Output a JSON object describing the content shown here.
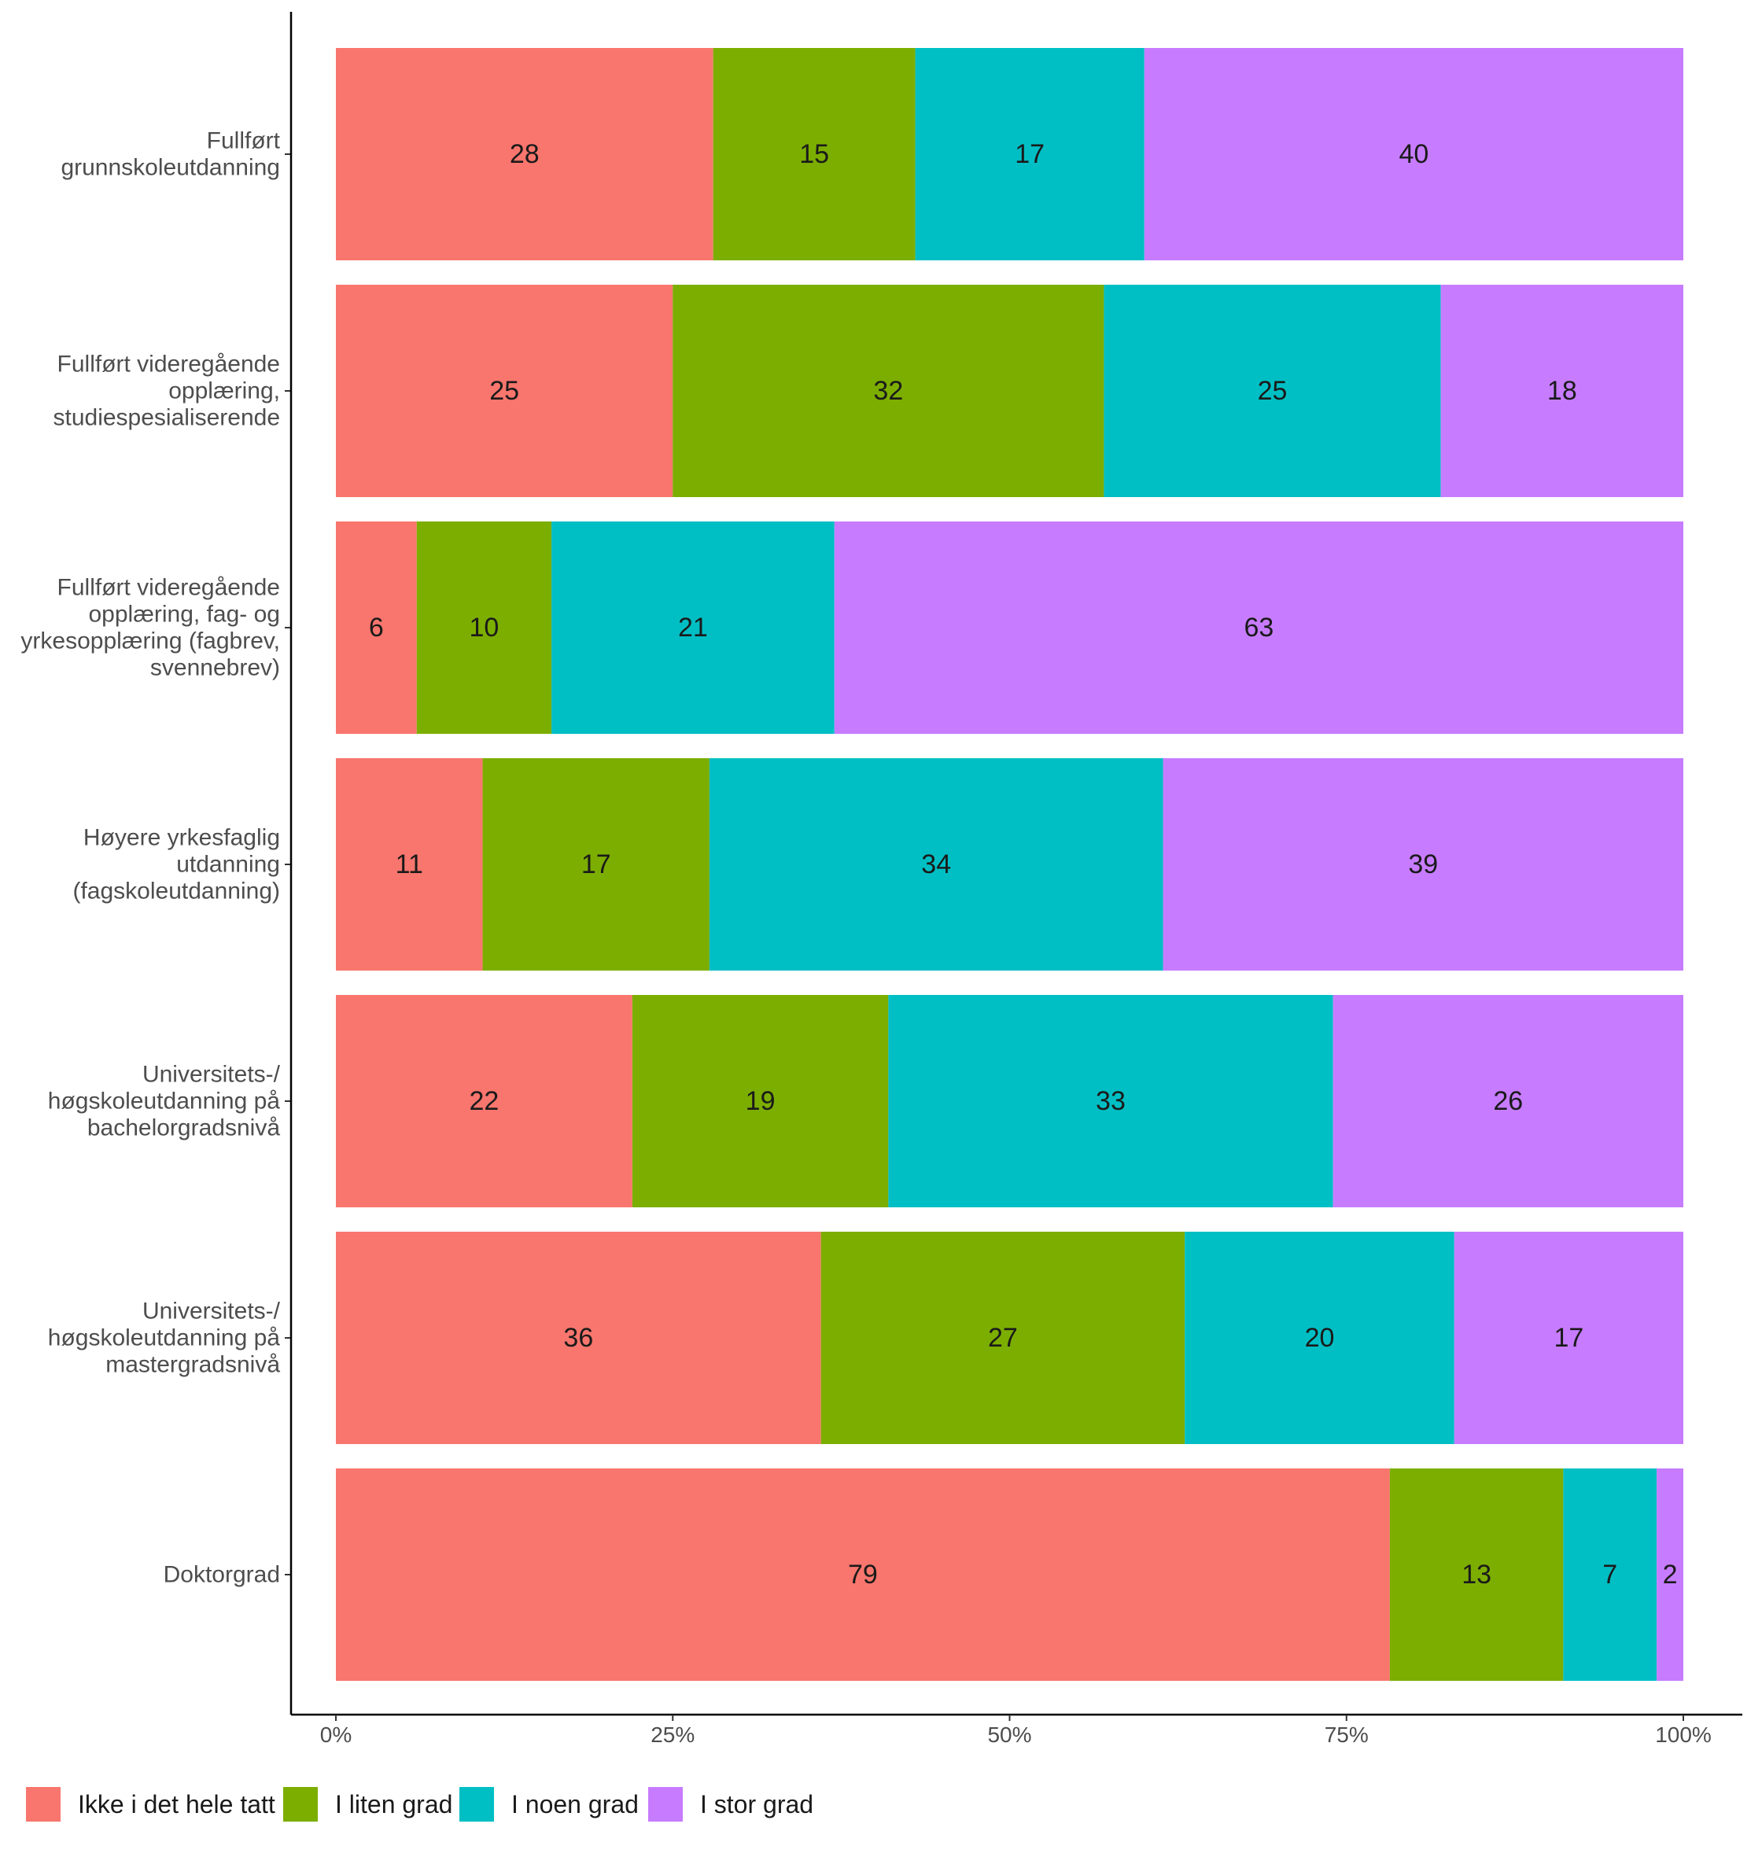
{
  "chart_data": {
    "type": "bar",
    "orientation": "horizontal",
    "stacked": true,
    "percent": true,
    "categories": [
      [
        "Fullført",
        "grunnskoleutdanning"
      ],
      [
        "Fullført videregående",
        "opplæring,",
        "studiespesialiserende"
      ],
      [
        "Fullført videregående",
        "opplæring, fag- og",
        "yrkesopplæring (fagbrev,",
        "svennebrev)"
      ],
      [
        "Høyere yrkesfaglig",
        "utdanning",
        "(fagskoleutdanning)"
      ],
      [
        "Universitets-/",
        "høgskoleutdanning på",
        "bachelorgradsnivå"
      ],
      [
        "Universitets-/",
        "høgskoleutdanning på",
        "mastergradsnivå"
      ],
      [
        "Doktorgrad"
      ]
    ],
    "series": [
      {
        "name": "Ikke i det hele tatt",
        "color": "#F8766D",
        "values": [
          28,
          25,
          6,
          11,
          22,
          36,
          79
        ]
      },
      {
        "name": "I liten grad",
        "color": "#7CAE00",
        "values": [
          15,
          32,
          10,
          17,
          19,
          27,
          13
        ]
      },
      {
        "name": "I noen grad",
        "color": "#00BFC4",
        "values": [
          17,
          25,
          21,
          34,
          33,
          20,
          7
        ]
      },
      {
        "name": "I stor grad",
        "color": "#C77CFF",
        "values": [
          40,
          18,
          63,
          39,
          26,
          17,
          2
        ]
      }
    ],
    "x_ticks": [
      "0%",
      "25%",
      "50%",
      "75%",
      "100%"
    ],
    "xlim": [
      0,
      100
    ],
    "xlabel": "",
    "ylabel": "",
    "title": "",
    "grid": false,
    "legend": {
      "position": "bottom-left"
    }
  }
}
